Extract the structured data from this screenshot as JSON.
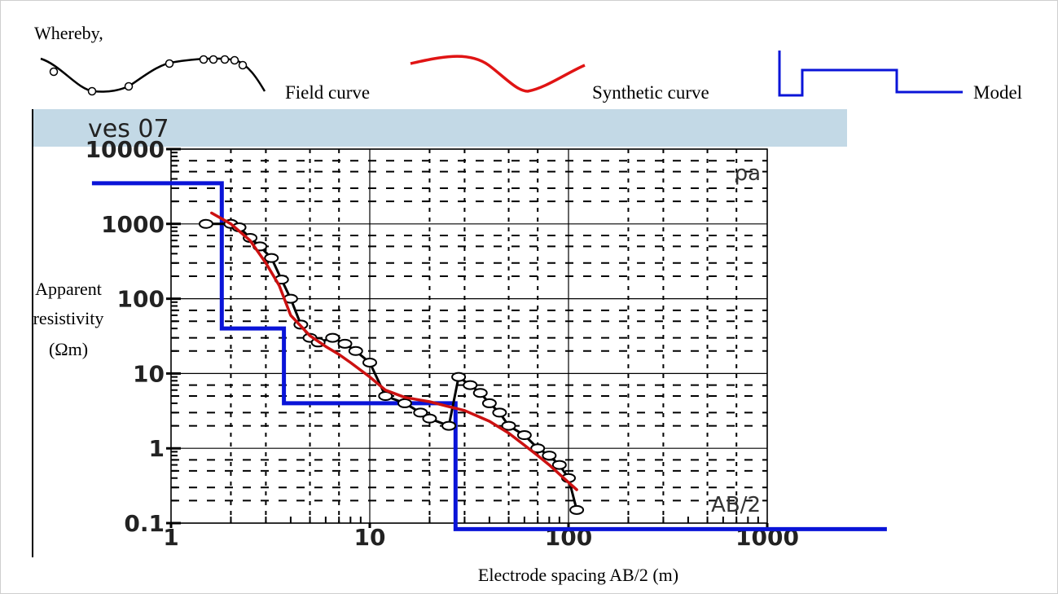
{
  "legend": {
    "intro": "Whereby,",
    "field_label": "Field curve",
    "synthetic_label": "Synthetic curve",
    "model_label": "Model"
  },
  "chart_data": {
    "type": "line",
    "title": "ves 07",
    "xlabel": "Electrode spacing AB/2 (m)",
    "ylabel_lines": [
      "Apparent",
      "resistivity",
      "(Ωm)"
    ],
    "axis_tag_y": "ρa",
    "axis_tag_x": "AB/2",
    "x_scale": "log",
    "y_scale": "log",
    "xlim": [
      1,
      1000
    ],
    "ylim": [
      0.1,
      10000
    ],
    "x_ticks": [
      1,
      10,
      100,
      1000
    ],
    "x_tick_labels": [
      "1",
      "10",
      "100",
      "1000"
    ],
    "y_ticks": [
      0.1,
      1,
      10,
      100,
      1000,
      10000
    ],
    "y_tick_labels": [
      "0.1",
      "1",
      "10",
      "100",
      "1000",
      "10000"
    ],
    "grid": true,
    "colors": {
      "field": "#000000",
      "synthetic": "#cc1111",
      "model": "#0a14d8",
      "title_band": "#c3d9e6"
    },
    "series": [
      {
        "name": "Field curve",
        "kind": "points",
        "x": [
          1.5,
          2.0,
          2.2,
          2.5,
          2.8,
          3.2,
          3.6,
          4.0,
          4.5,
          5.0,
          5.5,
          6.5,
          7.5,
          8.5,
          10,
          12,
          15,
          18,
          20,
          25,
          28,
          32,
          36,
          40,
          45,
          50,
          60,
          70,
          80,
          90,
          100,
          110
        ],
        "y": [
          1000,
          1000,
          900,
          650,
          500,
          350,
          180,
          100,
          45,
          30,
          26,
          30,
          25,
          20,
          14,
          5,
          4,
          3,
          2.5,
          2,
          9,
          7,
          5.5,
          4,
          3,
          2,
          1.5,
          1,
          0.8,
          0.6,
          0.4,
          0.15
        ]
      },
      {
        "name": "Synthetic curve",
        "kind": "line",
        "x": [
          1.6,
          2,
          2.5,
          3,
          3.5,
          4,
          5,
          6,
          7,
          8,
          10,
          12,
          15,
          20,
          25,
          30,
          40,
          50,
          60,
          70,
          80,
          100,
          110
        ],
        "y": [
          1400,
          1000,
          600,
          300,
          150,
          60,
          32,
          23,
          18,
          14,
          9,
          6,
          4.8,
          4.2,
          3.6,
          3.2,
          2.3,
          1.6,
          1.1,
          0.8,
          0.6,
          0.35,
          0.28
        ]
      },
      {
        "name": "Model",
        "kind": "step",
        "x": [
          0.4,
          1.8,
          1.8,
          3.7,
          3.7,
          27,
          27,
          4000
        ],
        "y": [
          3500,
          3500,
          40,
          40,
          4,
          4,
          0.083,
          0.083
        ]
      }
    ]
  }
}
